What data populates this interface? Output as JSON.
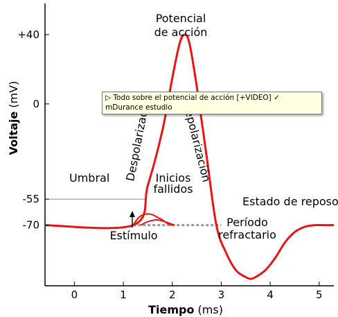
{
  "chart_data": {
    "type": "line",
    "title": "",
    "xlabel_bold": "Tiempo",
    "xlabel_unit": " (ms)",
    "ylabel_bold": "Voltaje",
    "ylabel_unit": " (mV)",
    "xlim": [
      -0.6,
      5.3
    ],
    "ylim": [
      -105,
      58
    ],
    "x_ticks": [
      0,
      1,
      2,
      3,
      4,
      5
    ],
    "y_ticks": [
      {
        "value": 40,
        "label": "+40"
      },
      {
        "value": 0,
        "label": "0"
      },
      {
        "value": -55,
        "label": "-55"
      },
      {
        "value": -70,
        "label": "-70"
      }
    ],
    "threshold": {
      "value": -55,
      "label": "Umbral"
    },
    "grid": false,
    "series": [
      {
        "name": "",
        "color": "#ee1111",
        "x": [
          -0.6,
          1.2,
          1.5,
          1.8,
          2.0,
          2.15,
          2.25,
          2.35,
          2.5,
          2.7,
          2.9,
          3.1,
          3.3,
          3.5,
          3.6,
          3.7,
          3.9,
          4.1,
          4.3,
          4.5,
          4.7,
          4.9,
          5.1,
          5.3
        ],
        "y": [
          -70,
          -70,
          -47,
          -15,
          15,
          35,
          40,
          35,
          10,
          -30,
          -70,
          -86,
          -96,
          -100,
          -101,
          -100,
          -96,
          -89,
          -80,
          -74,
          -71,
          -70,
          -70,
          -70
        ]
      },
      {
        "name": "",
        "color": "#ee1111",
        "x": [
          1.2,
          1.3,
          1.4,
          1.5,
          1.6,
          1.7,
          1.8,
          1.9,
          2.0
        ],
        "y": [
          -70,
          -66,
          -64,
          -63.5,
          -64,
          -65.5,
          -67,
          -69,
          -70
        ]
      },
      {
        "name": "",
        "color": "#ee1111",
        "x": [
          1.35,
          1.5,
          1.65,
          1.75,
          1.85,
          1.95,
          2.05
        ],
        "y": [
          -70,
          -68,
          -67,
          -67.2,
          -68,
          -69,
          -70
        ]
      },
      {
        "name": "",
        "color": "#999999",
        "dashed": true,
        "x": [
          1.2,
          3.0
        ],
        "y": [
          -70,
          -70
        ]
      }
    ],
    "annotations": [
      {
        "id": "potencial-1",
        "text": "Potencial"
      },
      {
        "id": "potencial-2",
        "text": "de acción"
      },
      {
        "id": "despolarizacion",
        "text": "Despolarización"
      },
      {
        "id": "repolarizacion",
        "text": "Repolarización"
      },
      {
        "id": "inicios-1",
        "text": "Inicios"
      },
      {
        "id": "inicios-2",
        "text": "fallidos"
      },
      {
        "id": "reposo",
        "text": "Estado de reposo"
      },
      {
        "id": "estimulo",
        "text": "Estímulo"
      },
      {
        "id": "periodo-1",
        "text": "Período"
      },
      {
        "id": "periodo-2",
        "text": "refractario"
      }
    ]
  },
  "tooltip": {
    "icon": "play-triangle-icon",
    "text": "▷ Todo sobre el potencial de acción [+VIDEO] ✓ mDurance estudio"
  }
}
